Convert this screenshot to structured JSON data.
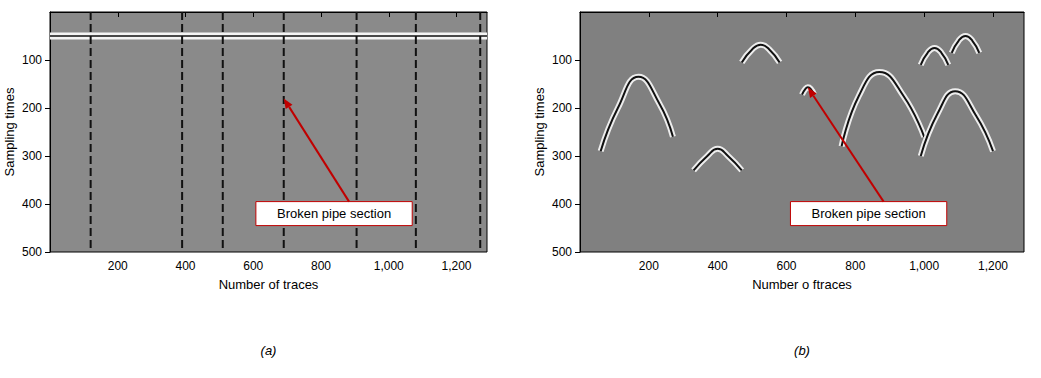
{
  "chart_data": [
    {
      "type": "line",
      "panel_label": "(a)",
      "xlabel": "Number of traces",
      "ylabel": "Sampling times",
      "xlim": [
        0,
        1290
      ],
      "ylim": [
        0,
        500
      ],
      "xticks": [
        200,
        400,
        600,
        800,
        1000,
        1200
      ],
      "yticks": [
        100,
        200,
        300,
        400,
        500
      ],
      "surface_y": 50,
      "vlines_x": [
        120,
        390,
        510,
        690,
        905,
        1080,
        1270
      ],
      "line_style": "dashed",
      "color": "#111111",
      "annotation": {
        "text": "Broken pipe section",
        "x": 690,
        "y": 180
      }
    },
    {
      "type": "line",
      "panel_label": "(b)",
      "xlabel": "Number o ftraces",
      "ylabel": "Sampling times",
      "xlim": [
        0,
        1290
      ],
      "ylim": [
        0,
        500
      ],
      "xticks": [
        200,
        400,
        600,
        800,
        1000,
        1200
      ],
      "yticks": [
        100,
        200,
        300,
        400,
        500
      ],
      "series": [
        {
          "values": [
            [
              60,
              290
            ],
            [
              110,
              200
            ],
            [
              170,
              135
            ],
            [
              230,
              190
            ],
            [
              270,
              260
            ]
          ]
        },
        {
          "values": [
            [
              760,
              280
            ],
            [
              810,
              175
            ],
            [
              870,
              125
            ],
            [
              940,
              175
            ],
            [
              1000,
              260
            ]
          ]
        },
        {
          "values": [
            [
              990,
              300
            ],
            [
              1040,
              210
            ],
            [
              1090,
              165
            ],
            [
              1150,
              215
            ],
            [
              1200,
              290
            ]
          ]
        },
        {
          "values": [
            [
              470,
              105
            ],
            [
              500,
              78
            ],
            [
              525,
              68
            ],
            [
              550,
              78
            ],
            [
              580,
              105
            ]
          ]
        },
        {
          "values": [
            [
              990,
              110
            ],
            [
              1010,
              85
            ],
            [
              1030,
              75
            ],
            [
              1050,
              85
            ],
            [
              1070,
              110
            ]
          ]
        },
        {
          "values": [
            [
              1080,
              85
            ],
            [
              1100,
              60
            ],
            [
              1120,
              50
            ],
            [
              1140,
              60
            ],
            [
              1160,
              85
            ]
          ]
        },
        {
          "values": [
            [
              645,
              172
            ],
            [
              655,
              160
            ],
            [
              662,
              157
            ],
            [
              670,
              160
            ],
            [
              680,
              172
            ]
          ]
        },
        {
          "values": [
            [
              330,
              330
            ],
            [
              370,
              300
            ],
            [
              400,
              285
            ],
            [
              430,
              300
            ],
            [
              470,
              330
            ]
          ]
        }
      ],
      "color": "#111111",
      "annotation": {
        "text": "Broken pipe section",
        "x": 662,
        "y": 157
      }
    }
  ]
}
